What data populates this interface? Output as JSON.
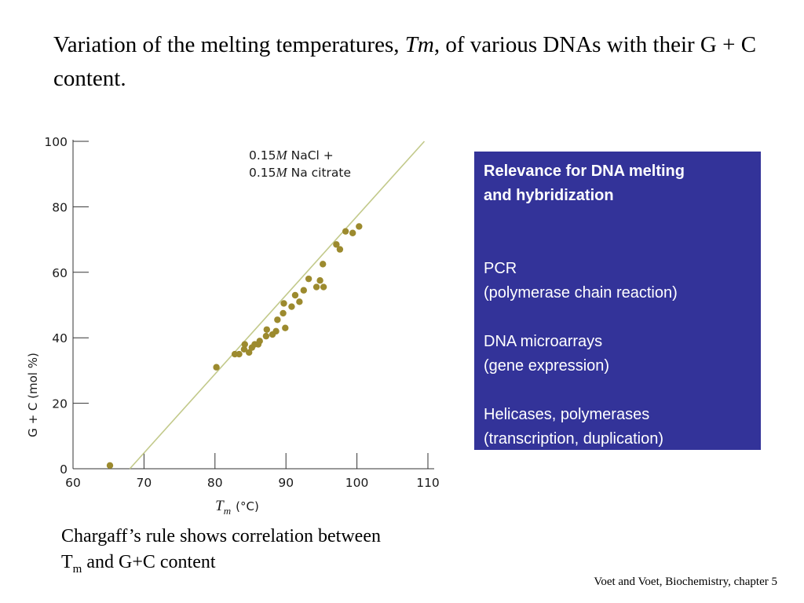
{
  "slide": {
    "title_part1": "Variation of the melting temperatures, ",
    "title_tm": "Tm",
    "title_part2": ", of various DNAs with their G + C content.",
    "caption_line1": "Chargaff’s rule shows correlation between",
    "caption_T": "T",
    "caption_sub": "m",
    "caption_rest": " and G+C content",
    "credit": "Voet and Voet, Biochemistry, chapter 5"
  },
  "infobox": {
    "heading_line1": "Relevance for DNA melting",
    "heading_line2": "and hybridization",
    "items": [
      {
        "line1": "PCR",
        "line2": "(polymerase chain reaction)"
      },
      {
        "line1": "DNA microarrays",
        "line2": "(gene expression)"
      },
      {
        "line1": "Helicases, polymerases",
        "line2": "(transcription, duplication)"
      }
    ],
    "background": "#333399"
  },
  "chart_data": {
    "type": "scatter",
    "xlabel_symbol": "T",
    "xlabel_sub": "m",
    "xlabel_unit": "(°C)",
    "ylabel": "G + C (mol %)",
    "xlim": [
      60,
      110
    ],
    "ylim": [
      0,
      100
    ],
    "x_ticks": [
      60,
      70,
      80,
      90,
      100,
      110
    ],
    "y_ticks": [
      0,
      20,
      40,
      60,
      80,
      100
    ],
    "annotation_line1_num": "0.15",
    "annotation_line1_unit": "M",
    "annotation_line1_rest": " NaCl +",
    "annotation_line2_num": "0.15",
    "annotation_line2_unit": "M",
    "annotation_line2_rest": " Na citrate",
    "point_color": "#9c8a2e",
    "line_color": "#c2c98a",
    "fit_line": [
      [
        68.0,
        0
      ],
      [
        109.5,
        100
      ]
    ],
    "points": [
      [
        65.2,
        1
      ],
      [
        80.2,
        31
      ],
      [
        82.8,
        35
      ],
      [
        83.4,
        35
      ],
      [
        84.1,
        36.5
      ],
      [
        84.2,
        38
      ],
      [
        84.8,
        35.5
      ],
      [
        85.2,
        37
      ],
      [
        85.6,
        38
      ],
      [
        86.1,
        38
      ],
      [
        86.3,
        39
      ],
      [
        87.2,
        40.5
      ],
      [
        87.3,
        42.5
      ],
      [
        88.1,
        41
      ],
      [
        88.6,
        42
      ],
      [
        88.8,
        45.5
      ],
      [
        89.6,
        47.5
      ],
      [
        89.7,
        50.5
      ],
      [
        89.9,
        43
      ],
      [
        90.8,
        49.5
      ],
      [
        91.3,
        53
      ],
      [
        91.9,
        51
      ],
      [
        92.5,
        54.5
      ],
      [
        93.2,
        58
      ],
      [
        94.3,
        55.5
      ],
      [
        94.8,
        57.5
      ],
      [
        95.2,
        62.5
      ],
      [
        95.3,
        55.5
      ],
      [
        97.1,
        68.5
      ],
      [
        97.6,
        67
      ],
      [
        98.4,
        72.5
      ],
      [
        99.4,
        72
      ],
      [
        100.3,
        74
      ]
    ]
  }
}
